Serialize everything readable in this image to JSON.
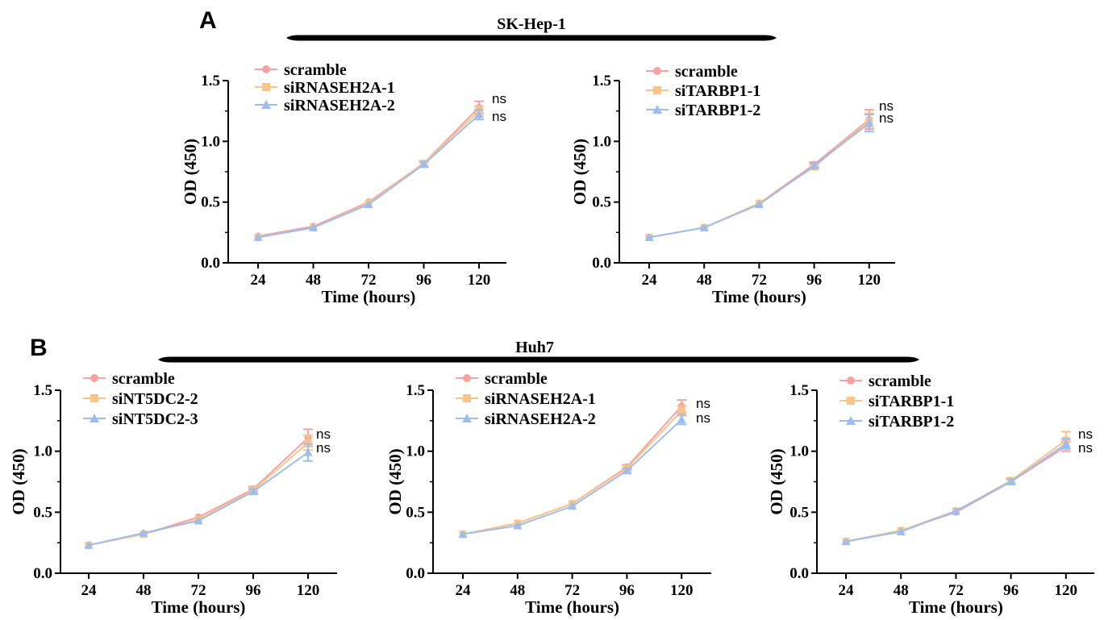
{
  "colors": {
    "scramble": "#f4a3a3",
    "knockdown_1": "#f9c48a",
    "knockdown_2": "#9cbdf0",
    "axis": "#000000",
    "banner": "#000000"
  },
  "panel_letters": [
    "A",
    "B"
  ],
  "cell_lines": [
    "SK-Hep-1",
    "Huh7"
  ],
  "chart_data": [
    {
      "type": "line",
      "panel": "A",
      "cell_line": "SK-Hep-1",
      "xlabel": "Time (hours)",
      "ylabel": "OD (450)",
      "x": [
        24,
        48,
        72,
        96,
        120
      ],
      "x_tick_labels": [
        "24",
        "48",
        "72",
        "96",
        "120"
      ],
      "y_tick_labels": [
        "0.0",
        "0.5",
        "1.0",
        "1.5"
      ],
      "ylim": [
        0,
        1.5
      ],
      "series": [
        {
          "name": "scramble",
          "values": [
            0.22,
            0.3,
            0.5,
            0.82,
            1.28
          ],
          "error": [
            0.01,
            0.01,
            0.01,
            0.02,
            0.05
          ],
          "marker": "circle"
        },
        {
          "name": "siRNASEH2A-1",
          "values": [
            0.21,
            0.29,
            0.49,
            0.82,
            1.25
          ],
          "error": [
            0.01,
            0.01,
            0.01,
            0.02,
            0.04
          ],
          "marker": "square"
        },
        {
          "name": "siRNASEH2A-2",
          "values": [
            0.21,
            0.29,
            0.48,
            0.81,
            1.22
          ],
          "error": [
            0.01,
            0.01,
            0.01,
            0.02,
            0.04
          ],
          "marker": "triangle"
        }
      ],
      "annotations": [
        "ns",
        "ns"
      ],
      "legend": "top-left",
      "grid": false
    },
    {
      "type": "line",
      "panel": "A",
      "cell_line": "SK-Hep-1",
      "xlabel": "Time (hours)",
      "ylabel": "OD (450)",
      "x": [
        24,
        48,
        72,
        96,
        120
      ],
      "x_tick_labels": [
        "24",
        "48",
        "72",
        "96",
        "120"
      ],
      "y_tick_labels": [
        "0.0",
        "0.5",
        "1.0",
        "1.5"
      ],
      "ylim": [
        0,
        1.5
      ],
      "series": [
        {
          "name": "scramble",
          "values": [
            0.21,
            0.29,
            0.49,
            0.81,
            1.18
          ],
          "error": [
            0.01,
            0.01,
            0.01,
            0.02,
            0.08
          ],
          "marker": "circle"
        },
        {
          "name": "siTARBP1-1",
          "values": [
            0.21,
            0.29,
            0.49,
            0.79,
            1.17
          ],
          "error": [
            0.01,
            0.01,
            0.01,
            0.02,
            0.06
          ],
          "marker": "square"
        },
        {
          "name": "siTARBP1-2",
          "values": [
            0.21,
            0.29,
            0.48,
            0.8,
            1.15
          ],
          "error": [
            0.01,
            0.01,
            0.01,
            0.02,
            0.07
          ],
          "marker": "triangle"
        }
      ],
      "annotations": [
        "ns",
        "ns"
      ],
      "legend": "top-left",
      "grid": false
    },
    {
      "type": "line",
      "panel": "B",
      "cell_line": "Huh7",
      "xlabel": "Time (hours)",
      "ylabel": "OD (450)",
      "x": [
        24,
        48,
        72,
        96,
        120
      ],
      "x_tick_labels": [
        "24",
        "48",
        "72",
        "96",
        "120"
      ],
      "y_tick_labels": [
        "0.0",
        "0.5",
        "1.0",
        "1.5"
      ],
      "ylim": [
        0,
        1.5
      ],
      "series": [
        {
          "name": "scramble",
          "values": [
            0.23,
            0.32,
            0.46,
            0.69,
            1.11
          ],
          "error": [
            0.01,
            0.01,
            0.01,
            0.02,
            0.07
          ],
          "marker": "circle"
        },
        {
          "name": "siNT5DC2-2",
          "values": [
            0.23,
            0.32,
            0.44,
            0.68,
            1.07
          ],
          "error": [
            0.01,
            0.01,
            0.01,
            0.02,
            0.06
          ],
          "marker": "square"
        },
        {
          "name": "siNT5DC2-3",
          "values": [
            0.23,
            0.33,
            0.43,
            0.67,
            0.99
          ],
          "error": [
            0.01,
            0.01,
            0.01,
            0.02,
            0.07
          ],
          "marker": "triangle"
        }
      ],
      "annotations": [
        "ns",
        "ns"
      ],
      "legend": "top-left",
      "grid": false
    },
    {
      "type": "line",
      "panel": "B",
      "cell_line": "Huh7",
      "xlabel": "Time (hours)",
      "ylabel": "OD (450)",
      "x": [
        24,
        48,
        72,
        96,
        120
      ],
      "x_tick_labels": [
        "24",
        "48",
        "72",
        "96",
        "120"
      ],
      "y_tick_labels": [
        "0.0",
        "0.5",
        "1.0",
        "1.5"
      ],
      "ylim": [
        0,
        1.5
      ],
      "series": [
        {
          "name": "scramble",
          "values": [
            0.32,
            0.41,
            0.57,
            0.87,
            1.37
          ],
          "error": [
            0.01,
            0.01,
            0.01,
            0.02,
            0.05
          ],
          "marker": "circle"
        },
        {
          "name": "siRNASEH2A-1",
          "values": [
            0.32,
            0.41,
            0.57,
            0.86,
            1.33
          ],
          "error": [
            0.01,
            0.01,
            0.01,
            0.02,
            0.04
          ],
          "marker": "square"
        },
        {
          "name": "siRNASEH2A-2",
          "values": [
            0.32,
            0.39,
            0.55,
            0.84,
            1.26
          ],
          "error": [
            0.01,
            0.01,
            0.01,
            0.02,
            0.04
          ],
          "marker": "triangle"
        }
      ],
      "annotations": [
        "ns",
        "ns"
      ],
      "legend": "top-left",
      "grid": false
    },
    {
      "type": "line",
      "panel": "B",
      "cell_line": "Huh7",
      "xlabel": "Time (hours)",
      "ylabel": "OD (450)",
      "x": [
        24,
        48,
        72,
        96,
        120
      ],
      "x_tick_labels": [
        "24",
        "48",
        "72",
        "96",
        "120"
      ],
      "y_tick_labels": [
        "0.0",
        "0.5",
        "1.0",
        "1.5"
      ],
      "ylim": [
        0,
        1.5
      ],
      "series": [
        {
          "name": "scramble",
          "values": [
            0.26,
            0.35,
            0.5,
            0.75,
            1.04
          ],
          "error": [
            0.01,
            0.01,
            0.01,
            0.02,
            0.04
          ],
          "marker": "circle"
        },
        {
          "name": "siTARBP1-1",
          "values": [
            0.26,
            0.35,
            0.51,
            0.76,
            1.09
          ],
          "error": [
            0.01,
            0.01,
            0.01,
            0.02,
            0.07
          ],
          "marker": "square"
        },
        {
          "name": "siTARBP1-2",
          "values": [
            0.26,
            0.34,
            0.51,
            0.75,
            1.06
          ],
          "error": [
            0.01,
            0.01,
            0.01,
            0.02,
            0.04
          ],
          "marker": "triangle"
        }
      ],
      "annotations": [
        "ns",
        "ns"
      ],
      "legend": "top-left",
      "grid": false
    }
  ]
}
